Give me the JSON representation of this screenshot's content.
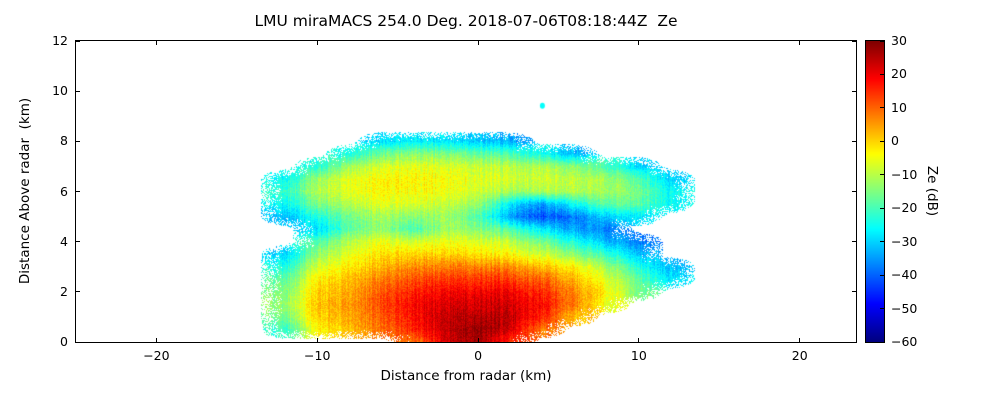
{
  "title": "LMU miraMACS 254.0 Deg. 2018-07-06T08:18:44Z  Ze",
  "colors": {
    "background": "#ffffff",
    "axes": "#000000"
  },
  "chart_data": {
    "type": "heatmap",
    "title": "LMU miraMACS 254.0 Deg. 2018-07-06T08:18:44Z  Ze",
    "xlabel": "Distance from radar (km)",
    "ylabel": "Distance Above radar  (km)",
    "xlim": [
      -25,
      23.5
    ],
    "ylim": [
      0,
      12
    ],
    "xticks": [
      -20,
      -10,
      0,
      10,
      20
    ],
    "yticks": [
      0,
      2,
      4,
      6,
      8,
      10,
      12
    ],
    "grid": false,
    "colorbar": {
      "label": "Ze (dB)",
      "min": -60,
      "max": 30,
      "ticks": [
        30,
        20,
        10,
        0,
        -10,
        -20,
        -30,
        -40,
        -50,
        -60
      ],
      "colormap": "jet"
    },
    "units": "dB",
    "grid_x": [
      -14,
      -12,
      -10,
      -8,
      -6,
      -4,
      -2,
      0,
      2,
      4,
      6,
      8,
      10,
      12,
      14
    ],
    "grid_y": [
      0,
      0.5,
      1,
      1.5,
      2,
      2.5,
      3,
      3.5,
      4,
      4.5,
      5,
      5.5,
      6,
      6.5,
      7,
      7.5,
      8,
      8.5
    ],
    "values": [
      [
        null,
        null,
        null,
        null,
        null,
        8,
        22,
        28,
        14,
        null,
        null,
        null,
        null,
        null,
        null
      ],
      [
        null,
        -22,
        -4,
        2,
        8,
        16,
        24,
        29,
        22,
        8,
        null,
        null,
        null,
        null,
        null
      ],
      [
        null,
        -16,
        0,
        4,
        10,
        18,
        24,
        26,
        24,
        16,
        2,
        null,
        null,
        null,
        null
      ],
      [
        null,
        -13,
        1,
        5,
        12,
        19,
        22,
        23,
        22,
        18,
        8,
        -6,
        null,
        null,
        null
      ],
      [
        null,
        -15,
        0,
        4,
        10,
        16,
        19,
        20,
        19,
        15,
        7,
        -3,
        -16,
        null,
        null
      ],
      [
        null,
        -18,
        -3,
        2,
        7,
        12,
        14,
        15,
        13,
        10,
        3,
        -7,
        -18,
        -28,
        null
      ],
      [
        null,
        -24,
        -8,
        -2,
        2,
        6,
        8,
        8,
        6,
        2,
        -3,
        -12,
        -24,
        -32,
        null
      ],
      [
        null,
        -30,
        -14,
        -6,
        -2,
        0,
        0,
        -1,
        -4,
        -8,
        -14,
        -22,
        -32,
        null,
        null
      ],
      [
        null,
        null,
        -20,
        -10,
        -6,
        -8,
        -5,
        -6,
        -10,
        -16,
        -24,
        -32,
        -38,
        null,
        null
      ],
      [
        null,
        null,
        -30,
        -18,
        -14,
        -20,
        -12,
        -14,
        -20,
        -28,
        -34,
        -38,
        null,
        null,
        null
      ],
      [
        null,
        -32,
        -24,
        -16,
        -12,
        -14,
        -12,
        -18,
        -35,
        -42,
        -38,
        -30,
        -28,
        null,
        null
      ],
      [
        null,
        -26,
        -16,
        -10,
        -7,
        -7,
        -9,
        -12,
        -28,
        -35,
        -25,
        -18,
        -18,
        -26,
        null
      ],
      [
        null,
        -22,
        -11,
        -6,
        -4,
        -4,
        -5,
        -7,
        -12,
        -11,
        -10,
        -12,
        -16,
        -25,
        null
      ],
      [
        null,
        -26,
        -13,
        -6,
        -4,
        -3,
        -4,
        -6,
        -8,
        -8,
        -9,
        -12,
        -19,
        -30,
        null
      ],
      [
        null,
        null,
        -24,
        -12,
        -8,
        -6,
        -7,
        -8,
        -10,
        -11,
        -14,
        -20,
        -30,
        null,
        null
      ],
      [
        null,
        null,
        null,
        -24,
        -17,
        -14,
        -15,
        -17,
        -20,
        -25,
        -32,
        null,
        null,
        null,
        null
      ],
      [
        null,
        null,
        null,
        null,
        -30,
        -27,
        -28,
        -30,
        -34,
        null,
        null,
        null,
        null,
        null,
        null
      ],
      [
        null,
        null,
        null,
        null,
        null,
        null,
        null,
        null,
        null,
        null,
        null,
        null,
        null,
        null,
        null
      ]
    ],
    "point_features": [
      {
        "x": 4.0,
        "y": 9.5,
        "value": -26
      }
    ]
  }
}
